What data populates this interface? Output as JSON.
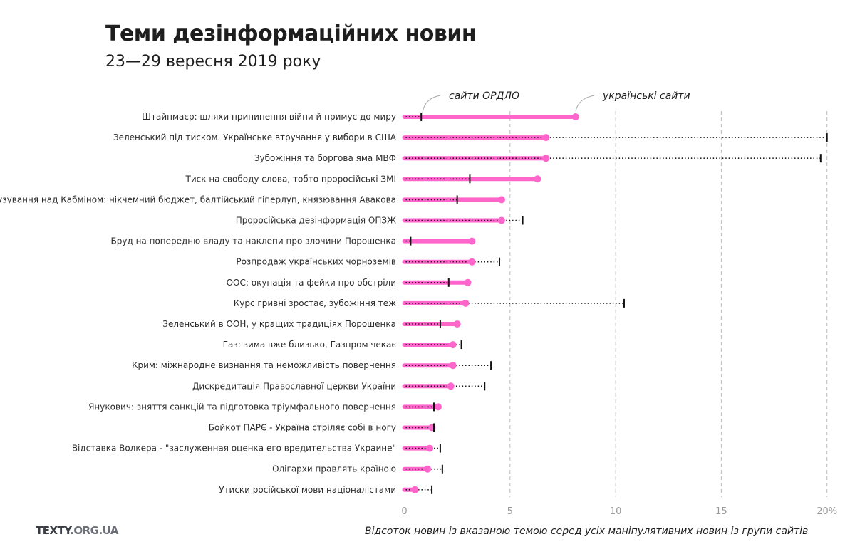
{
  "header": {
    "title": "Теми дезінформаційних новин",
    "subtitle": "23—29 вересня 2019 року"
  },
  "footer": {
    "logo_main": "TEXTY",
    "logo_suffix": ".ORG.UA"
  },
  "colors": {
    "ukrainian": "#ff66cc",
    "ordlo": "#111111",
    "grid": "#bbbbbb"
  },
  "chart_data": {
    "type": "dumbbell",
    "title": "Теми дезінформаційних новин",
    "subtitle": "23—29 вересня 2019 року",
    "xlabel": "Відсоток новин із вказаною темою серед усіх маніпулятивних новин із групи сайтів",
    "ylabel": "",
    "xlim": [
      0,
      20
    ],
    "x_ticks": [
      "0",
      "5",
      "10",
      "15",
      "20%"
    ],
    "grid": "vertical dashed",
    "annotations": {
      "ordlo": "сайти ОРДЛО",
      "ukrainian": "українські сайти"
    },
    "series": [
      {
        "name": "українські сайти",
        "marker": "dot"
      },
      {
        "name": "сайти ОРДЛО",
        "marker": "tick"
      }
    ],
    "categories": [
      "Штайнмаєр: шляхи припинення війни й примус до миру",
      "Зеленський під тиском. Українське втручання у вибори в США",
      "Зубожіння та боргова яма МВФ",
      "Тиск на свободу слова, тобто проросійські ЗМІ",
      "Глузування над Кабміном: нікчемний бюджет, балтійський гіперлуп, князювання Авакова",
      "Проросійська дезінформація ОПЗЖ",
      "Бруд на попередню владу та наклепи про злочини Порошенка",
      "Розпродаж українських чорноземів",
      "ООС: окупація та фейки про обстріли",
      "Курс гривні зростає, зубожіння теж",
      "Зеленський в ООН, у кращих традиціях Порошенка",
      "Газ: зима вже близько, Газпром чекає",
      "Крим: міжнародне визнання та неможливість повернення",
      "Дискредитація Православної церкви України",
      "Янукович: зняття санкцій та підготовка тріумфального повернення",
      "Бойкот ПАРЄ - Україна стріляє собі в ногу",
      "Відставка Волкера - \"заслуженная оценка его вредительства Украине\"",
      "Олігархи правлять країною",
      "Утиски російської мови націоналістами"
    ],
    "ukrainian": [
      8.1,
      6.7,
      6.7,
      6.3,
      4.6,
      4.6,
      3.2,
      3.2,
      3.0,
      2.9,
      2.5,
      2.3,
      2.3,
      2.2,
      1.6,
      1.3,
      1.2,
      1.1,
      0.5
    ],
    "ordlo": [
      0.8,
      20.0,
      19.7,
      3.1,
      2.5,
      5.6,
      0.3,
      4.5,
      2.1,
      10.4,
      1.7,
      2.7,
      4.1,
      3.8,
      1.4,
      1.4,
      1.7,
      1.8,
      1.3
    ]
  }
}
